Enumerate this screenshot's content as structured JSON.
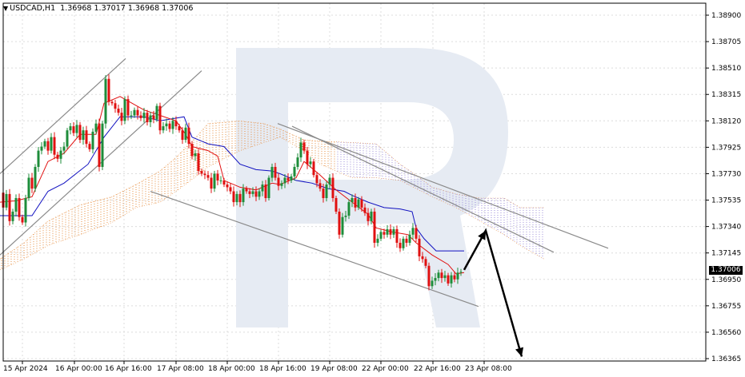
{
  "header": {
    "symbol": "USDCAD,H1",
    "open": "1.36968",
    "high": "1.37017",
    "low": "1.36968",
    "close": "1.37006"
  },
  "price_axis": {
    "ticks": [
      "1.38900",
      "1.38705",
      "1.38510",
      "1.38315",
      "1.38120",
      "1.37925",
      "1.37730",
      "1.37535",
      "1.37340",
      "1.37145",
      "1.36950",
      "1.36755",
      "1.36560",
      "1.36365"
    ],
    "current_price": "1.37006"
  },
  "time_axis": {
    "ticks": [
      "15 Apr 2024",
      "16 Apr 00:00",
      "16 Apr 16:00",
      "17 Apr 08:00",
      "18 Apr 00:00",
      "18 Apr 16:00",
      "19 Apr 08:00",
      "22 Apr 00:00",
      "22 Apr 16:00",
      "23 Apr 08:00"
    ]
  },
  "colors": {
    "bull_candle": "#1e8c3a",
    "bear_candle": "#e01010",
    "tenkan": "#e01010",
    "kijun": "#1010c0",
    "cloud_bear": "#e58a3a",
    "cloud_bull": "#9a8ad8",
    "watermark": "#e6ebf3",
    "arrow": "#000000"
  },
  "chart_data": {
    "type": "candlestick",
    "symbol": "USDCAD",
    "timeframe": "H1",
    "ylim": [
      1.36365,
      1.38925
    ],
    "y_ticks": [
      1.389,
      1.38705,
      1.3851,
      1.38315,
      1.3812,
      1.37925,
      1.3773,
      1.37535,
      1.3734,
      1.37145,
      1.3695,
      1.36755,
      1.3656,
      1.36365
    ],
    "x_ticks": [
      "15 Apr 2024",
      "16 Apr 00:00",
      "16 Apr 16:00",
      "17 Apr 08:00",
      "18 Apr 00:00",
      "18 Apr 16:00",
      "19 Apr 08:00",
      "22 Apr 00:00",
      "22 Apr 16:00",
      "23 Apr 08:00"
    ],
    "last_close": 1.37006,
    "close_path": [
      [
        0,
        1.3759
      ],
      [
        4,
        1.3748
      ],
      [
        8,
        1.3758
      ],
      [
        12,
        1.3738
      ],
      [
        16,
        1.3745
      ],
      [
        20,
        1.3755
      ],
      [
        24,
        1.3741
      ],
      [
        28,
        1.3737
      ],
      [
        32,
        1.3755
      ],
      [
        36,
        1.377
      ],
      [
        40,
        1.3762
      ],
      [
        44,
        1.3778
      ],
      [
        48,
        1.379
      ],
      [
        52,
        1.3793
      ],
      [
        56,
        1.3797
      ],
      [
        60,
        1.379
      ],
      [
        64,
        1.38
      ],
      [
        68,
        1.3787
      ],
      [
        72,
        1.3784
      ],
      [
        76,
        1.379
      ],
      [
        80,
        1.3793
      ],
      [
        84,
        1.3805
      ],
      [
        88,
        1.3808
      ],
      [
        92,
        1.3803
      ],
      [
        96,
        1.3809
      ],
      [
        100,
        1.3798
      ],
      [
        104,
        1.3805
      ],
      [
        108,
        1.3795
      ],
      [
        112,
        1.3791
      ],
      [
        116,
        1.3804
      ],
      [
        120,
        1.381
      ],
      [
        124,
        1.3778
      ],
      [
        128,
        1.381
      ],
      [
        132,
        1.3843
      ],
      [
        136,
        1.3826
      ],
      [
        140,
        1.3825
      ],
      [
        144,
        1.3821
      ],
      [
        148,
        1.3818
      ],
      [
        152,
        1.3812
      ],
      [
        156,
        1.3828
      ],
      [
        160,
        1.3816
      ],
      [
        164,
        1.3816
      ],
      [
        168,
        1.382
      ],
      [
        172,
        1.3816
      ],
      [
        176,
        1.3814
      ],
      [
        180,
        1.3818
      ],
      [
        184,
        1.3811
      ],
      [
        188,
        1.3816
      ],
      [
        192,
        1.3813
      ],
      [
        196,
        1.3823
      ],
      [
        200,
        1.3805
      ],
      [
        204,
        1.3808
      ],
      [
        208,
        1.381
      ],
      [
        212,
        1.3806
      ],
      [
        216,
        1.3812
      ],
      [
        220,
        1.3808
      ],
      [
        224,
        1.3805
      ],
      [
        228,
        1.3798
      ],
      [
        232,
        1.3807
      ],
      [
        236,
        1.3795
      ],
      [
        240,
        1.3786
      ],
      [
        244,
        1.3788
      ],
      [
        248,
        1.3775
      ],
      [
        252,
        1.3773
      ],
      [
        256,
        1.3772
      ],
      [
        260,
        1.377
      ],
      [
        264,
        1.3762
      ],
      [
        268,
        1.3773
      ],
      [
        272,
        1.3768
      ],
      [
        276,
        1.3768
      ],
      [
        280,
        1.3765
      ],
      [
        284,
        1.3763
      ],
      [
        288,
        1.376
      ],
      [
        292,
        1.3752
      ],
      [
        296,
        1.3758
      ],
      [
        300,
        1.3752
      ],
      [
        304,
        1.3762
      ],
      [
        308,
        1.376
      ],
      [
        312,
        1.3758
      ],
      [
        316,
        1.376
      ],
      [
        320,
        1.3756
      ],
      [
        324,
        1.376
      ],
      [
        328,
        1.3765
      ],
      [
        332,
        1.3755
      ],
      [
        336,
        1.377
      ],
      [
        340,
        1.3778
      ],
      [
        344,
        1.377
      ],
      [
        348,
        1.3764
      ],
      [
        352,
        1.3766
      ],
      [
        356,
        1.377
      ],
      [
        360,
        1.3768
      ],
      [
        364,
        1.3771
      ],
      [
        368,
        1.3778
      ],
      [
        372,
        1.3785
      ],
      [
        376,
        1.3796
      ],
      [
        380,
        1.379
      ],
      [
        384,
        1.378
      ],
      [
        388,
        1.3782
      ],
      [
        392,
        1.3772
      ],
      [
        396,
        1.3766
      ],
      [
        400,
        1.3762
      ],
      [
        404,
        1.3755
      ],
      [
        408,
        1.3765
      ],
      [
        412,
        1.377
      ],
      [
        416,
        1.3755
      ],
      [
        420,
        1.3745
      ],
      [
        424,
        1.3728
      ],
      [
        428,
        1.3741
      ],
      [
        432,
        1.3742
      ],
      [
        436,
        1.3752
      ],
      [
        440,
        1.3755
      ],
      [
        444,
        1.3748
      ],
      [
        448,
        1.3754
      ],
      [
        452,
        1.3748
      ],
      [
        456,
        1.3744
      ],
      [
        460,
        1.3738
      ],
      [
        464,
        1.3745
      ],
      [
        468,
        1.3722
      ],
      [
        472,
        1.3725
      ],
      [
        476,
        1.373
      ],
      [
        480,
        1.3728
      ],
      [
        484,
        1.3732
      ],
      [
        488,
        1.3728
      ],
      [
        492,
        1.3732
      ],
      [
        496,
        1.3722
      ],
      [
        500,
        1.3718
      ],
      [
        504,
        1.3725
      ],
      [
        508,
        1.3722
      ],
      [
        512,
        1.3728
      ],
      [
        516,
        1.3733
      ],
      [
        520,
        1.3725
      ],
      [
        524,
        1.3712
      ],
      [
        528,
        1.371
      ],
      [
        532,
        1.3705
      ],
      [
        536,
        1.369
      ],
      [
        540,
        1.3694
      ],
      [
        544,
        1.3696
      ],
      [
        548,
        1.37
      ],
      [
        552,
        1.3696
      ],
      [
        556,
        1.3698
      ],
      [
        560,
        1.3692
      ],
      [
        564,
        1.3698
      ],
      [
        568,
        1.3695
      ],
      [
        572,
        1.37
      ],
      [
        576,
        1.37006
      ]
    ],
    "tenkan_sen": [
      [
        0,
        1.3752
      ],
      [
        20,
        1.3753
      ],
      [
        40,
        1.3756
      ],
      [
        60,
        1.3782
      ],
      [
        80,
        1.3788
      ],
      [
        100,
        1.3802
      ],
      [
        120,
        1.3802
      ],
      [
        130,
        1.3825
      ],
      [
        150,
        1.383
      ],
      [
        180,
        1.382
      ],
      [
        200,
        1.3816
      ],
      [
        220,
        1.3812
      ],
      [
        232,
        1.3802
      ],
      [
        240,
        1.3793
      ],
      [
        260,
        1.379
      ],
      [
        272,
        1.3786
      ],
      [
        280,
        1.3768
      ],
      [
        300,
        1.3763
      ],
      [
        320,
        1.3761
      ],
      [
        340,
        1.3766
      ],
      [
        350,
        1.3765
      ],
      [
        370,
        1.377
      ],
      [
        380,
        1.3782
      ],
      [
        400,
        1.3772
      ],
      [
        420,
        1.3761
      ],
      [
        440,
        1.3752
      ],
      [
        460,
        1.3743
      ],
      [
        470,
        1.3733
      ],
      [
        490,
        1.373
      ],
      [
        510,
        1.3728
      ],
      [
        520,
        1.3722
      ],
      [
        540,
        1.3713
      ],
      [
        560,
        1.3706
      ],
      [
        570,
        1.3699
      ],
      [
        580,
        1.37
      ]
    ],
    "kijun_sen": [
      [
        0,
        1.3742
      ],
      [
        40,
        1.3742
      ],
      [
        60,
        1.376
      ],
      [
        80,
        1.3766
      ],
      [
        110,
        1.378
      ],
      [
        130,
        1.38
      ],
      [
        150,
        1.3815
      ],
      [
        180,
        1.3815
      ],
      [
        200,
        1.3812
      ],
      [
        230,
        1.3815
      ],
      [
        240,
        1.38
      ],
      [
        260,
        1.3795
      ],
      [
        280,
        1.3793
      ],
      [
        300,
        1.378
      ],
      [
        320,
        1.3776
      ],
      [
        340,
        1.3775
      ],
      [
        350,
        1.3773
      ],
      [
        370,
        1.3768
      ],
      [
        390,
        1.3766
      ],
      [
        410,
        1.3762
      ],
      [
        430,
        1.376
      ],
      [
        440,
        1.3757
      ],
      [
        460,
        1.3752
      ],
      [
        480,
        1.3748
      ],
      [
        500,
        1.3747
      ],
      [
        515,
        1.3745
      ],
      [
        520,
        1.3733
      ],
      [
        530,
        1.3725
      ],
      [
        545,
        1.3716
      ],
      [
        580,
        1.3716
      ]
    ],
    "kumo_upper": [
      [
        0,
        1.371
      ],
      [
        30,
        1.3722
      ],
      [
        60,
        1.3738
      ],
      [
        100,
        1.375
      ],
      [
        140,
        1.3756
      ],
      [
        170,
        1.3765
      ],
      [
        200,
        1.3775
      ],
      [
        220,
        1.3785
      ],
      [
        245,
        1.38
      ],
      [
        260,
        1.381
      ],
      [
        300,
        1.3812
      ],
      [
        330,
        1.381
      ],
      [
        350,
        1.3806
      ],
      [
        380,
        1.3798
      ],
      [
        400,
        1.3797
      ],
      [
        440,
        1.3796
      ],
      [
        470,
        1.3795
      ],
      [
        500,
        1.378
      ],
      [
        520,
        1.3772
      ],
      [
        540,
        1.3763
      ],
      [
        570,
        1.3758
      ],
      [
        600,
        1.3755
      ],
      [
        630,
        1.3755
      ],
      [
        650,
        1.3748
      ],
      [
        680,
        1.3748
      ]
    ],
    "kumo_lower": [
      [
        0,
        1.3702
      ],
      [
        30,
        1.371
      ],
      [
        60,
        1.372
      ],
      [
        100,
        1.3728
      ],
      [
        140,
        1.3737
      ],
      [
        170,
        1.3748
      ],
      [
        200,
        1.3752
      ],
      [
        220,
        1.376
      ],
      [
        245,
        1.3771
      ],
      [
        260,
        1.3778
      ],
      [
        300,
        1.379
      ],
      [
        330,
        1.3796
      ],
      [
        350,
        1.38
      ],
      [
        380,
        1.379
      ],
      [
        400,
        1.378
      ],
      [
        440,
        1.377
      ],
      [
        470,
        1.377
      ],
      [
        500,
        1.3768
      ],
      [
        520,
        1.3762
      ],
      [
        540,
        1.3756
      ],
      [
        570,
        1.3748
      ],
      [
        600,
        1.3738
      ],
      [
        630,
        1.3728
      ],
      [
        650,
        1.372
      ],
      [
        680,
        1.371
      ]
    ],
    "trendlines": [
      {
        "name": "upper-channel-top",
        "from": [
          0,
          1.3773
        ],
        "to": [
          157,
          1.3858
        ]
      },
      {
        "name": "upper-channel-bottom",
        "from": [
          0,
          1.3713
        ],
        "to": [
          252,
          1.3849
        ]
      },
      {
        "name": "down-channel-top-a",
        "from": [
          347,
          1.381
        ],
        "to": [
          760,
          1.3718
        ]
      },
      {
        "name": "down-channel-top-b",
        "from": [
          365,
          1.3808
        ],
        "to": [
          692,
          1.3715
        ]
      },
      {
        "name": "down-channel-bottom",
        "from": [
          188,
          1.376
        ],
        "to": [
          598,
          1.3675
        ]
      }
    ],
    "forecast_arrow": [
      [
        580,
        1.3702
      ],
      [
        607,
        1.3731
      ],
      [
        652,
        1.3638
      ]
    ]
  }
}
